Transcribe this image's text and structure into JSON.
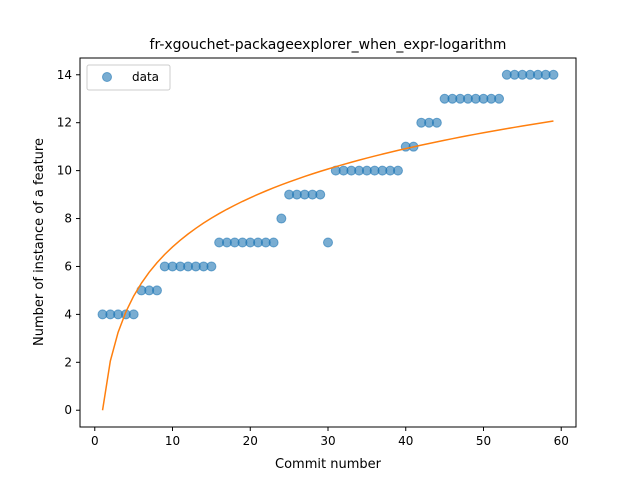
{
  "chart_data": {
    "type": "scatter",
    "title": "fr-xgouchet-packageexplorer_when_expr-logarithm",
    "xlabel": "Commit number",
    "ylabel": "Number of instance of a feature",
    "xlim": [
      -1.9,
      61.9
    ],
    "ylim": [
      -0.7,
      14.7
    ],
    "xticks": [
      0,
      10,
      20,
      30,
      40,
      50,
      60
    ],
    "yticks": [
      0,
      2,
      4,
      6,
      8,
      10,
      12,
      14
    ],
    "legend": {
      "placement": "top-left",
      "entries": [
        "data"
      ]
    },
    "series": [
      {
        "name": "data",
        "kind": "scatter",
        "color": "#1f77b4",
        "x": [
          1,
          2,
          3,
          4,
          5,
          6,
          7,
          8,
          9,
          10,
          11,
          12,
          13,
          14,
          15,
          16,
          17,
          18,
          19,
          20,
          21,
          22,
          23,
          24,
          25,
          26,
          27,
          28,
          29,
          30,
          31,
          32,
          33,
          34,
          35,
          36,
          37,
          38,
          39,
          40,
          41,
          42,
          43,
          44,
          45,
          46,
          47,
          48,
          49,
          50,
          51,
          52,
          53,
          54,
          55,
          56,
          57,
          58,
          59
        ],
        "y": [
          4,
          4,
          4,
          4,
          4,
          5,
          5,
          5,
          6,
          6,
          6,
          6,
          6,
          6,
          6,
          7,
          7,
          7,
          7,
          7,
          7,
          7,
          7,
          8,
          9,
          9,
          9,
          9,
          9,
          7,
          10,
          10,
          10,
          10,
          10,
          10,
          10,
          10,
          10,
          11,
          11,
          12,
          12,
          12,
          13,
          13,
          13,
          13,
          13,
          13,
          13,
          13,
          14,
          14,
          14,
          14,
          14,
          14,
          14
        ]
      },
      {
        "kind": "line",
        "color": "#ff7f0e",
        "fit": {
          "a": 2.96,
          "b": 0
        },
        "x_range": [
          1,
          59
        ]
      }
    ]
  }
}
